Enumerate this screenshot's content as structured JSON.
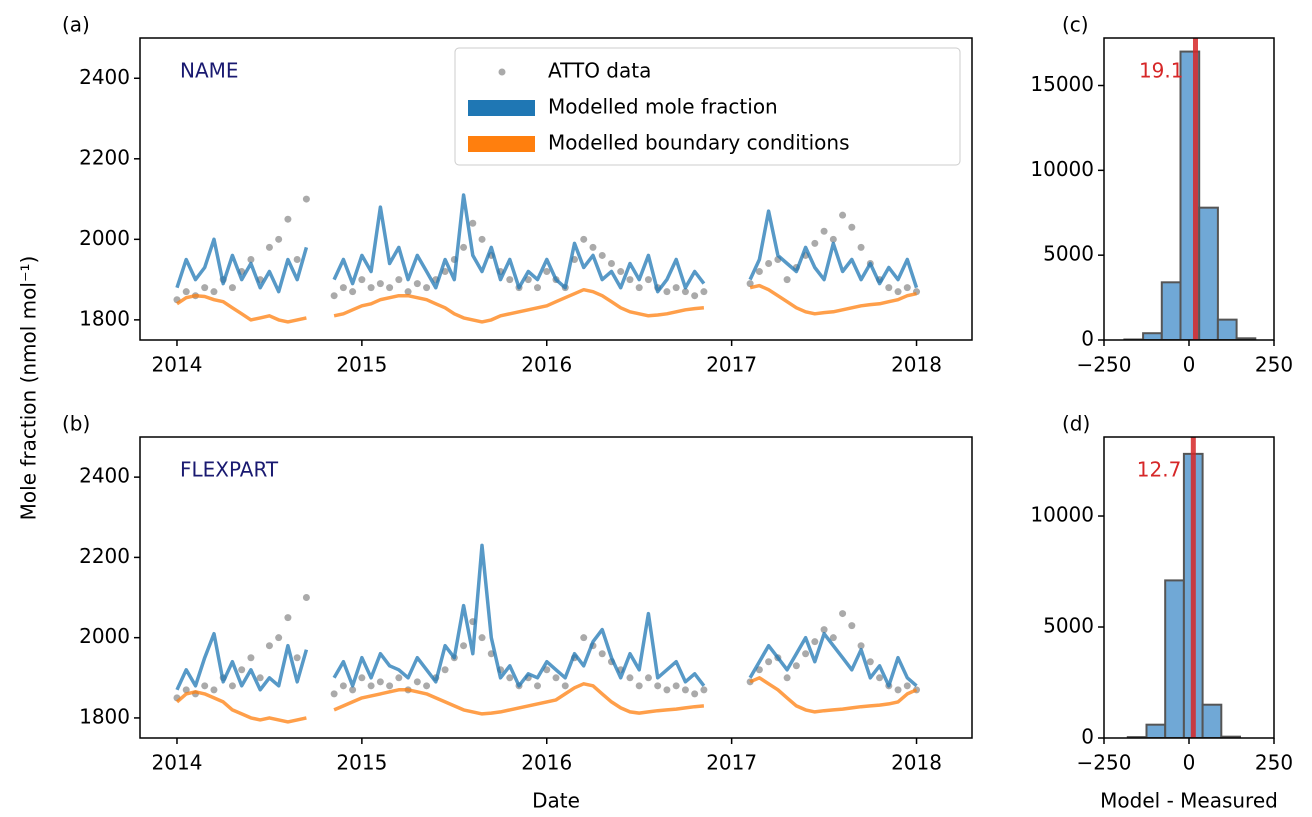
{
  "chart_data": [
    {
      "type": "line",
      "label": "(a)",
      "annotation": "NAME",
      "annotation_color": "#191970",
      "y_label": "Mole fraction (nmol mol⁻¹)",
      "x": [
        2014,
        2014.05,
        2014.1,
        2014.15,
        2014.2,
        2014.25,
        2014.3,
        2014.35,
        2014.4,
        2014.45,
        2014.5,
        2014.55,
        2014.6,
        2014.65,
        2014.7,
        2014.75,
        2014.8,
        2014.85,
        2014.9,
        2014.95,
        2015,
        2015.05,
        2015.1,
        2015.15,
        2015.2,
        2015.25,
        2015.3,
        2015.35,
        2015.4,
        2015.45,
        2015.5,
        2015.55,
        2015.6,
        2015.65,
        2015.7,
        2015.75,
        2015.8,
        2015.85,
        2015.9,
        2015.95,
        2016,
        2016.05,
        2016.1,
        2016.15,
        2016.2,
        2016.25,
        2016.3,
        2016.35,
        2016.4,
        2016.45,
        2016.5,
        2016.55,
        2016.6,
        2016.65,
        2016.7,
        2016.75,
        2016.8,
        2016.85,
        2016.9,
        2016.95,
        2017,
        2017.05,
        2017.1,
        2017.15,
        2017.2,
        2017.25,
        2017.3,
        2017.35,
        2017.4,
        2017.45,
        2017.5,
        2017.55,
        2017.6,
        2017.65,
        2017.7,
        2017.75,
        2017.8,
        2017.85,
        2017.9,
        2017.95,
        2018
      ],
      "xlim": [
        2013.8,
        2018.3
      ],
      "xticks": [
        2014,
        2015,
        2016,
        2017,
        2018
      ],
      "ylim": [
        1750,
        2500
      ],
      "yticks": [
        1800,
        2000,
        2200,
        2400
      ],
      "legend": "upper right",
      "series": [
        {
          "name": "ATTO data",
          "type": "scatter",
          "color": "#aaaaaa",
          "values": [
            1850,
            1870,
            1860,
            1880,
            1870,
            1900,
            1880,
            1920,
            1950,
            1900,
            1980,
            2000,
            2050,
            1950,
            2100,
            null,
            null,
            1860,
            1880,
            1870,
            1900,
            1880,
            1890,
            1880,
            1900,
            1870,
            1890,
            1880,
            1900,
            1920,
            1950,
            1980,
            2040,
            2000,
            1960,
            1920,
            1900,
            1880,
            1900,
            1880,
            1920,
            1900,
            1880,
            1950,
            2000,
            1980,
            1960,
            1940,
            1920,
            1900,
            1880,
            1900,
            1880,
            1870,
            1880,
            1870,
            1860,
            1870,
            null,
            null,
            null,
            null,
            1890,
            1920,
            1940,
            1950,
            1900,
            1930,
            1960,
            1990,
            2020,
            2000,
            2060,
            2030,
            1980,
            1940,
            1900,
            1880,
            1870,
            1880,
            1870
          ]
        },
        {
          "name": "Modelled mole fraction",
          "type": "line",
          "color": "#1f77b4",
          "values": [
            1880,
            1950,
            1900,
            1930,
            2000,
            1890,
            1960,
            1900,
            1940,
            1880,
            1920,
            1870,
            1950,
            1900,
            1980,
            null,
            null,
            1900,
            1950,
            1890,
            1960,
            1920,
            2080,
            1940,
            1980,
            1900,
            1960,
            1920,
            1880,
            1950,
            1900,
            2110,
            1960,
            1920,
            1980,
            1900,
            1950,
            1880,
            1920,
            1900,
            1950,
            1900,
            1880,
            1990,
            1930,
            1960,
            1900,
            1920,
            1880,
            1940,
            1900,
            1960,
            1870,
            1900,
            1950,
            1880,
            1920,
            1890,
            null,
            null,
            null,
            null,
            1900,
            1950,
            2070,
            1960,
            1940,
            1920,
            1980,
            1930,
            1900,
            1990,
            1920,
            1950,
            1900,
            1940,
            1890,
            1930,
            1900,
            1950,
            1880
          ]
        },
        {
          "name": "Modelled boundary conditions",
          "type": "line",
          "color": "#ff7f0e",
          "values": [
            1840,
            1855,
            1860,
            1858,
            1850,
            1845,
            1830,
            1815,
            1800,
            1805,
            1810,
            1800,
            1795,
            1800,
            1805,
            null,
            null,
            1810,
            1815,
            1825,
            1835,
            1840,
            1850,
            1855,
            1860,
            1860,
            1855,
            1850,
            1840,
            1830,
            1815,
            1805,
            1800,
            1795,
            1800,
            1810,
            1815,
            1820,
            1825,
            1830,
            1835,
            1845,
            1855,
            1865,
            1875,
            1870,
            1860,
            1845,
            1830,
            1820,
            1815,
            1810,
            1812,
            1815,
            1820,
            1825,
            1828,
            1830,
            null,
            null,
            null,
            null,
            1880,
            1885,
            1875,
            1860,
            1845,
            1830,
            1820,
            1815,
            1818,
            1820,
            1825,
            1830,
            1835,
            1838,
            1840,
            1845,
            1850,
            1860,
            1865
          ]
        }
      ]
    },
    {
      "type": "line",
      "label": "(b)",
      "annotation": "FLEXPART",
      "annotation_color": "#191970",
      "x_label": "Date",
      "x": [
        2014,
        2014.05,
        2014.1,
        2014.15,
        2014.2,
        2014.25,
        2014.3,
        2014.35,
        2014.4,
        2014.45,
        2014.5,
        2014.55,
        2014.6,
        2014.65,
        2014.7,
        2014.75,
        2014.8,
        2014.85,
        2014.9,
        2014.95,
        2015,
        2015.05,
        2015.1,
        2015.15,
        2015.2,
        2015.25,
        2015.3,
        2015.35,
        2015.4,
        2015.45,
        2015.5,
        2015.55,
        2015.6,
        2015.65,
        2015.7,
        2015.75,
        2015.8,
        2015.85,
        2015.9,
        2015.95,
        2016,
        2016.05,
        2016.1,
        2016.15,
        2016.2,
        2016.25,
        2016.3,
        2016.35,
        2016.4,
        2016.45,
        2016.5,
        2016.55,
        2016.6,
        2016.65,
        2016.7,
        2016.75,
        2016.8,
        2016.85,
        2016.9,
        2016.95,
        2017,
        2017.05,
        2017.1,
        2017.15,
        2017.2,
        2017.25,
        2017.3,
        2017.35,
        2017.4,
        2017.45,
        2017.5,
        2017.55,
        2017.6,
        2017.65,
        2017.7,
        2017.75,
        2017.8,
        2017.85,
        2017.9,
        2017.95,
        2018
      ],
      "xlim": [
        2013.8,
        2018.3
      ],
      "xticks": [
        2014,
        2015,
        2016,
        2017,
        2018
      ],
      "ylim": [
        1750,
        2500
      ],
      "yticks": [
        1800,
        2000,
        2200,
        2400
      ],
      "legend": false,
      "series": [
        {
          "name": "ATTO data",
          "type": "scatter",
          "color": "#aaaaaa",
          "values": [
            1850,
            1870,
            1860,
            1880,
            1870,
            1900,
            1880,
            1920,
            1950,
            1900,
            1980,
            2000,
            2050,
            1950,
            2100,
            null,
            null,
            1860,
            1880,
            1870,
            1900,
            1880,
            1890,
            1880,
            1900,
            1870,
            1890,
            1880,
            1900,
            1920,
            1950,
            1980,
            2040,
            2000,
            1960,
            1920,
            1900,
            1880,
            1900,
            1880,
            1920,
            1900,
            1880,
            1950,
            2000,
            1980,
            1960,
            1940,
            1920,
            1900,
            1880,
            1900,
            1880,
            1870,
            1880,
            1870,
            1860,
            1870,
            null,
            null,
            null,
            null,
            1890,
            1920,
            1940,
            1950,
            1900,
            1930,
            1960,
            1990,
            2020,
            2000,
            2060,
            2030,
            1980,
            1940,
            1900,
            1880,
            1870,
            1880,
            1870
          ]
        },
        {
          "name": "Modelled mole fraction",
          "type": "line",
          "color": "#1f77b4",
          "values": [
            1870,
            1920,
            1880,
            1950,
            2010,
            1890,
            1940,
            1880,
            1920,
            1870,
            1900,
            1880,
            1980,
            1890,
            1970,
            null,
            null,
            1900,
            1940,
            1880,
            1950,
            1900,
            1960,
            1930,
            1920,
            1900,
            1950,
            1920,
            1890,
            1980,
            1950,
            2080,
            1960,
            2230,
            2000,
            1900,
            1930,
            1880,
            1910,
            1900,
            1940,
            1920,
            1900,
            1960,
            1930,
            1990,
            2020,
            1950,
            1900,
            1960,
            1920,
            2060,
            1900,
            1920,
            1940,
            1890,
            1910,
            1880,
            null,
            null,
            null,
            null,
            1900,
            1940,
            1980,
            1950,
            1920,
            1960,
            2000,
            1940,
            2010,
            1980,
            1950,
            1920,
            1970,
            1900,
            1930,
            1880,
            1950,
            1900,
            1880
          ]
        },
        {
          "name": "Modelled boundary conditions",
          "type": "line",
          "color": "#ff7f0e",
          "values": [
            1840,
            1860,
            1865,
            1860,
            1850,
            1840,
            1820,
            1810,
            1800,
            1795,
            1800,
            1795,
            1790,
            1795,
            1800,
            null,
            null,
            1820,
            1830,
            1840,
            1850,
            1855,
            1860,
            1865,
            1870,
            1870,
            1865,
            1860,
            1850,
            1840,
            1830,
            1820,
            1815,
            1810,
            1812,
            1815,
            1820,
            1825,
            1830,
            1835,
            1840,
            1845,
            1860,
            1875,
            1885,
            1880,
            1860,
            1840,
            1825,
            1815,
            1812,
            1815,
            1818,
            1820,
            1822,
            1825,
            1828,
            1830,
            null,
            null,
            null,
            null,
            1890,
            1900,
            1885,
            1870,
            1850,
            1830,
            1820,
            1815,
            1818,
            1820,
            1822,
            1825,
            1828,
            1830,
            1832,
            1835,
            1840,
            1860,
            1870
          ]
        }
      ]
    },
    {
      "type": "histogram",
      "label": "(c)",
      "bins": [
        -190,
        -135,
        -80,
        -25,
        30,
        85,
        140,
        195
      ],
      "values": [
        30,
        400,
        3400,
        17000,
        7800,
        1200,
        100
      ],
      "color": "#70a8d6",
      "edgecolor": "#555555",
      "mean": 19.1,
      "mean_color": "#d62728",
      "xlim": [
        -250,
        250
      ],
      "xticks": [
        {
          "value": -250,
          "label": "−250"
        },
        0,
        250
      ],
      "ylim": [
        0,
        17800
      ],
      "yticks": [
        0,
        5000,
        10000,
        15000
      ]
    },
    {
      "type": "histogram",
      "label": "(d)",
      "x_label": "Model - Measured",
      "bins": [
        -180,
        -125,
        -70,
        -15,
        40,
        95,
        150
      ],
      "values": [
        40,
        600,
        7100,
        12800,
        1500,
        60
      ],
      "color": "#70a8d6",
      "edgecolor": "#555555",
      "mean": 12.7,
      "mean_color": "#d62728",
      "xlim": [
        -250,
        250
      ],
      "xticks": [
        {
          "value": -250,
          "label": "−250"
        },
        0,
        250
      ],
      "ylim": [
        0,
        13560
      ],
      "yticks": [
        0,
        5000,
        10000
      ]
    }
  ]
}
